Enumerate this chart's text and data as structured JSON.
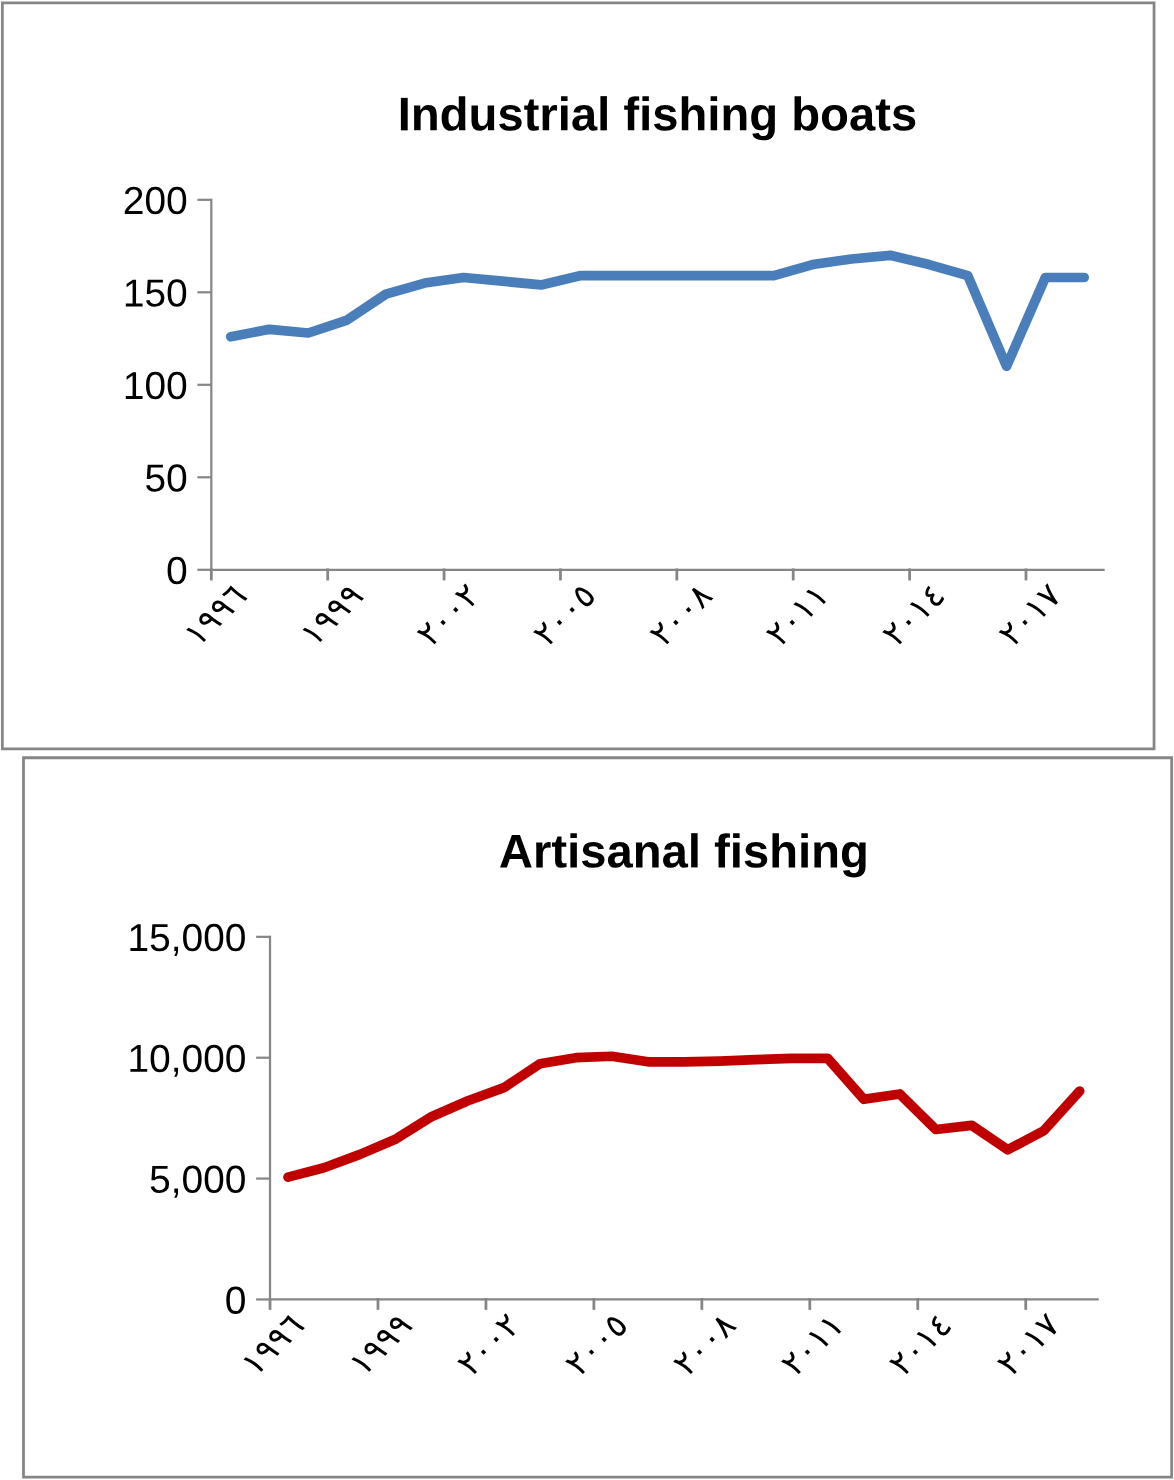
{
  "chart_data": [
    {
      "type": "line",
      "title": "Industrial fishing boats",
      "categories": [
        "١٩٩٦",
        null,
        null,
        "١٩٩٩",
        null,
        null,
        "٢٠٠٢",
        null,
        null,
        "٢٠٠٥",
        null,
        null,
        "٢٠٠٨",
        null,
        null,
        "٢٠١١",
        null,
        null,
        "٢٠١٤",
        null,
        null,
        "٢٠١٧",
        null
      ],
      "series": [
        {
          "color": "#4a7ebb",
          "values": [
            126,
            130,
            128,
            135,
            149,
            155,
            158,
            156,
            154,
            159,
            159,
            159,
            159,
            159,
            159,
            165,
            168,
            170,
            165,
            159,
            110,
            158,
            158
          ]
        }
      ],
      "ylim": [
        0,
        200
      ],
      "yticks": [
        0,
        50,
        100,
        150,
        200
      ],
      "marker": "none",
      "line_style": "solid"
    },
    {
      "type": "line",
      "title": "Artisanal fishing",
      "categories": [
        "١٩٩٦",
        null,
        null,
        "١٩٩٩",
        null,
        null,
        "٢٠٠٢",
        null,
        null,
        "٢٠٠٥",
        null,
        null,
        "٢٠٠٨",
        null,
        null,
        "٢٠١١",
        null,
        null,
        "٢٠١٤",
        null,
        null,
        "٢٠١٧",
        null
      ],
      "series": [
        {
          "color": "#c00000",
          "values": [
            5060,
            5450,
            6000,
            6640,
            7570,
            8220,
            8760,
            9750,
            10000,
            10060,
            9830,
            9830,
            9860,
            9920,
            9970,
            9970,
            8280,
            8500,
            7030,
            7200,
            6190,
            6980,
            8620
          ]
        }
      ],
      "ylim": [
        0,
        15000
      ],
      "yticks": [
        {
          "value": 0,
          "label": "0"
        },
        {
          "value": 5000,
          "label": "5,000"
        },
        {
          "value": 10000,
          "label": "10,000"
        },
        {
          "value": 15000,
          "label": "15,000"
        }
      ],
      "marker": "none",
      "line_style": "solid"
    }
  ]
}
